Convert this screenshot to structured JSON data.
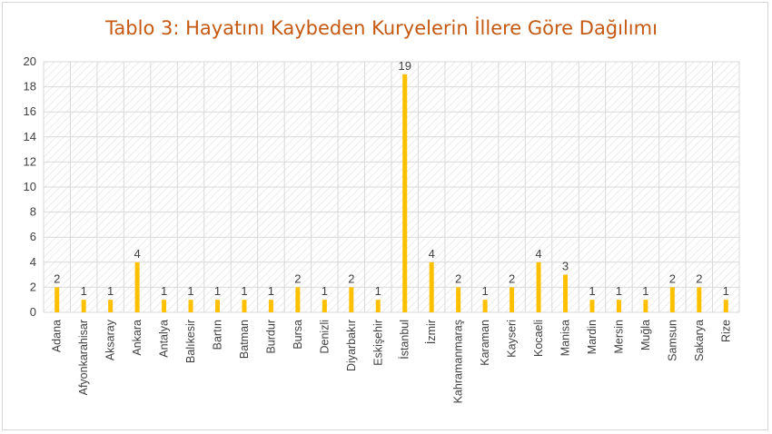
{
  "chart_data": {
    "type": "bar",
    "title": "Tablo 3: Hayatını Kaybeden Kuryelerin İllere Göre Dağılımı",
    "categories": [
      "Adana",
      "Afyonkarahisar",
      "Aksaray",
      "Ankara",
      "Antalya",
      "Balıkesir",
      "Bartın",
      "Batman",
      "Burdur",
      "Bursa",
      "Denizli",
      "Diyarbakır",
      "Eskişehir",
      "İstanbul",
      "İzmir",
      "Kahramanmaraş",
      "Karaman",
      "Kayseri",
      "Kocaeli",
      "Manisa",
      "Mardin",
      "Mersin",
      "Muğla",
      "Samsun",
      "Sakarya",
      "Rize"
    ],
    "values": [
      2,
      1,
      1,
      4,
      1,
      1,
      1,
      1,
      1,
      2,
      1,
      2,
      1,
      19,
      4,
      2,
      1,
      2,
      4,
      3,
      1,
      1,
      1,
      2,
      2,
      1
    ],
    "ylim": [
      0,
      20
    ],
    "yticks": [
      0,
      2,
      4,
      6,
      8,
      10,
      12,
      14,
      16,
      18,
      20
    ],
    "grid": true,
    "bar_color": "#ffc000",
    "title_color": "#c65911"
  }
}
